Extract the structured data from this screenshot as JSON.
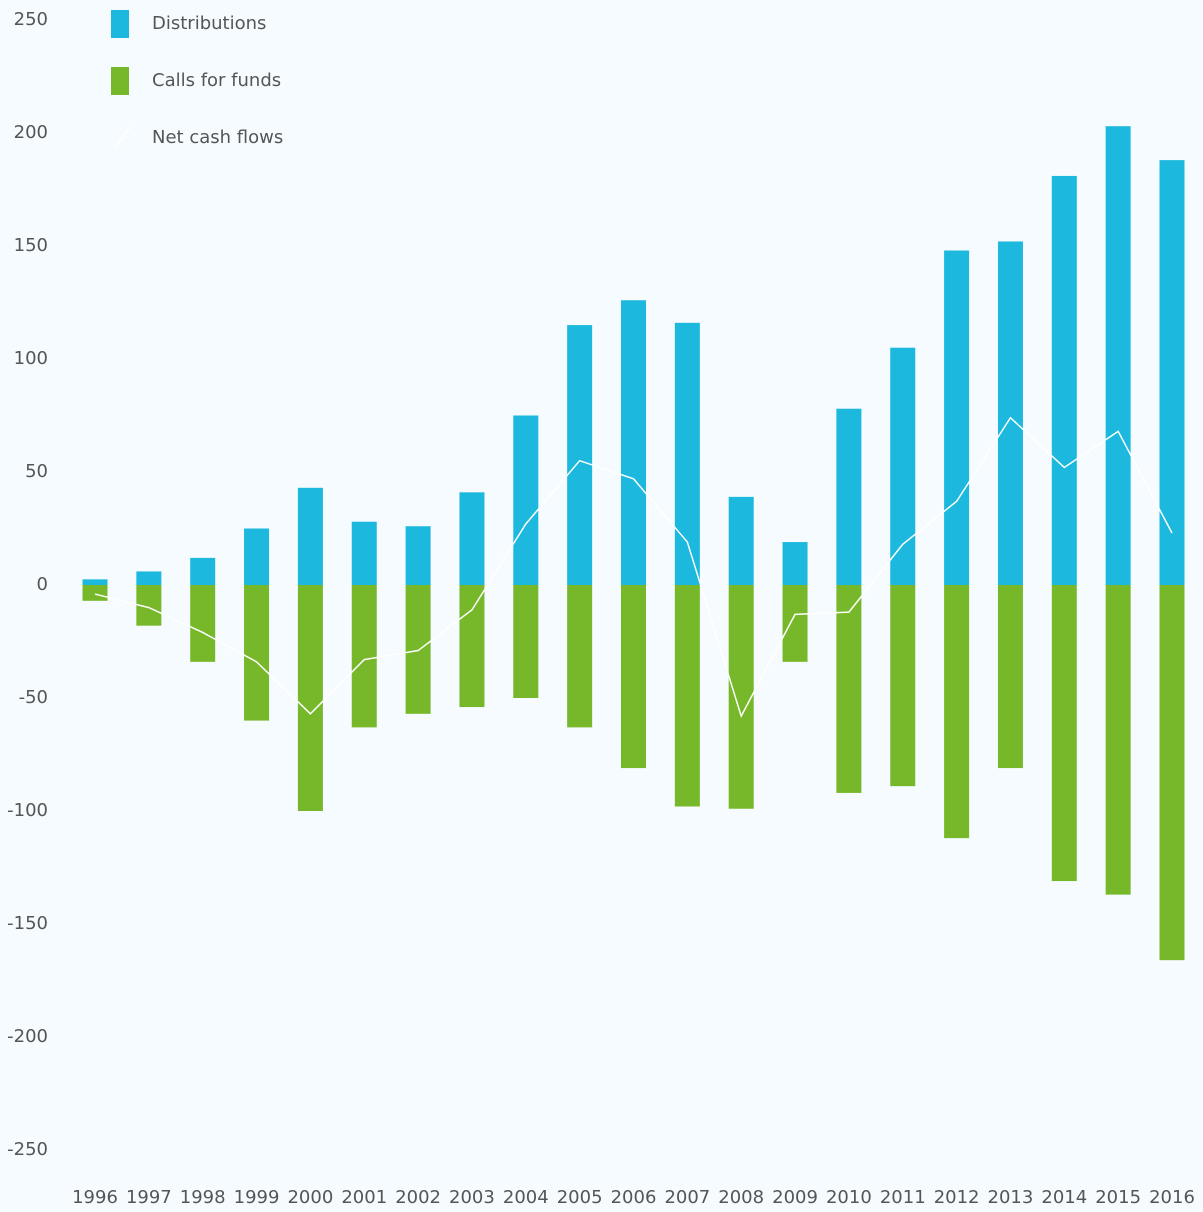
{
  "chart_data": {
    "type": "bar",
    "categories": [
      "1996",
      "1997",
      "1998",
      "1999",
      "2000",
      "2001",
      "2002",
      "2003",
      "2004",
      "2005",
      "2006",
      "2007",
      "2008",
      "2009",
      "2010",
      "2011",
      "2012",
      "2013",
      "2014",
      "2015",
      "2016"
    ],
    "series": [
      {
        "name": "Distributions",
        "type": "bar",
        "color": "#1cb8de",
        "values": [
          2.5,
          6,
          12,
          25,
          43,
          28,
          26,
          41,
          75,
          115,
          126,
          116,
          39,
          19,
          78,
          105,
          148,
          152,
          181,
          203,
          188
        ]
      },
      {
        "name": "Calls for funds",
        "type": "bar",
        "color": "#76b82a",
        "values": [
          -7,
          -18,
          -34,
          -60,
          -100,
          -63,
          -57,
          -54,
          -50,
          -63,
          -81,
          -98,
          -99,
          -34,
          -92,
          -89,
          -112,
          -81,
          -131,
          -137,
          -166
        ]
      },
      {
        "name": "Net cash flows",
        "type": "line",
        "color": "#ffffff",
        "values": [
          -4,
          -10,
          -21,
          -34,
          -57,
          -33,
          -29,
          -11,
          27,
          55,
          47,
          19,
          -58,
          -13,
          -12,
          18,
          37,
          74,
          52,
          68,
          23
        ]
      }
    ],
    "ylim": [
      -250,
      250
    ],
    "yticks": [
      250,
      200,
      150,
      100,
      50,
      0,
      -50,
      -100,
      -150,
      -200,
      -250
    ],
    "grid": false
  }
}
